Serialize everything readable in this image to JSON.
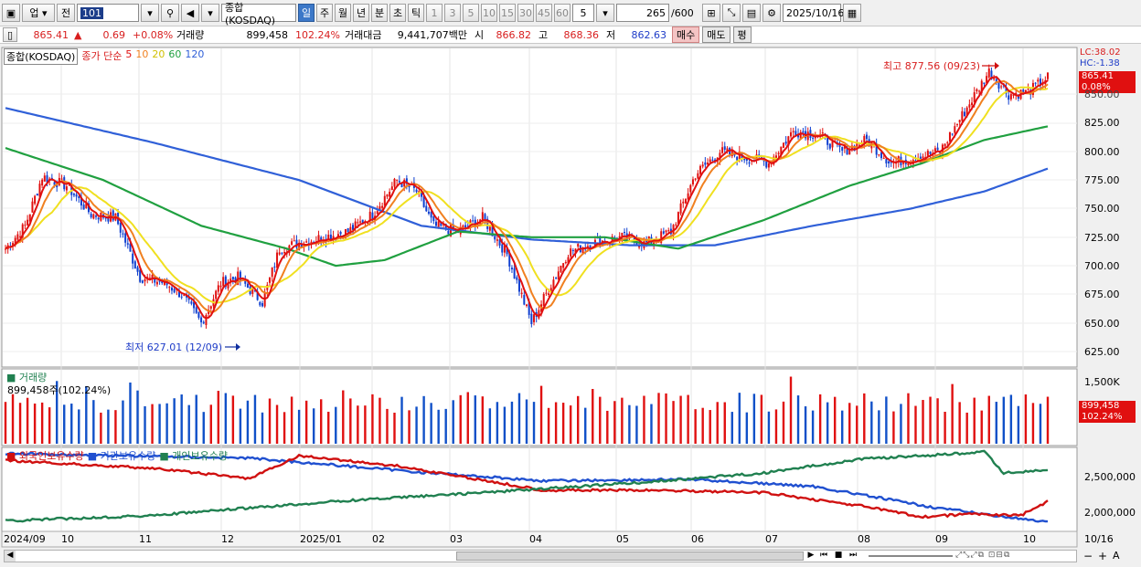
{
  "toolbar": {
    "market": "업",
    "prev_label": "전",
    "code": "101",
    "name": "종합(KOSDAQ)",
    "periods": [
      "일",
      "주",
      "월",
      "년",
      "분",
      "초",
      "틱"
    ],
    "active_period": "일",
    "intervals": [
      "1",
      "3",
      "5",
      "10",
      "15",
      "30",
      "45",
      "60"
    ],
    "interval_value": "5",
    "count": "265",
    "count_total": "/600",
    "date": "2025/10/16"
  },
  "info": {
    "price": "865.41",
    "change_arrow": "▲",
    "change": "0.69",
    "change_pct": "+0.08%",
    "volume_label": "거래량",
    "volume": "899,458",
    "volume_pct": "102.24%",
    "amount_label": "거래대금",
    "amount": "9,441,707백만",
    "open_label": "시",
    "open": "866.82",
    "high_label": "고",
    "high": "868.36",
    "low_label": "저",
    "low": "862.63",
    "buy": "매수",
    "sell": "매도",
    "avg": "평"
  },
  "price_panel": {
    "legend_name": "종합(KOSDAQ)",
    "ma_title": "종가 단순",
    "ma_periods": [
      {
        "label": "5",
        "color": "#e01010"
      },
      {
        "label": "10",
        "color": "#f08020"
      },
      {
        "label": "20",
        "color": "#f0e020"
      },
      {
        "label": "60",
        "color": "#20a040"
      },
      {
        "label": "120",
        "color": "#3060d8"
      }
    ],
    "lc": "LC:38.02",
    "hc": "HC:-1.38",
    "last_price_tag": "865.41",
    "last_pct_tag": "0.08%",
    "high_note": "최고 877.56 (09/23)",
    "low_note": "최저 627.01 (12/09)",
    "y_ticks": [
      "850.00",
      "825.00",
      "800.00",
      "775.00",
      "750.00",
      "725.00",
      "700.00",
      "675.00",
      "650.00",
      "625.00"
    ]
  },
  "volume_panel": {
    "title": "거래량",
    "value": "899,458주(102.24%)",
    "y_tick": "1,500K",
    "tag_value": "899,458",
    "tag_pct": "102.24%"
  },
  "holding_panel": {
    "legend": [
      {
        "label": "외국인보유수량",
        "color": "#d01010"
      },
      {
        "label": "기관보유수량",
        "color": "#2050d0"
      },
      {
        "label": "개인보유수량",
        "color": "#208050"
      }
    ],
    "y_ticks": [
      "2,500,000",
      "2,000,000"
    ]
  },
  "x_axis": {
    "labels": [
      "2024/09",
      "10",
      "11",
      "12",
      "2025/01",
      "02",
      "03",
      "04",
      "05",
      "06",
      "07",
      "08",
      "09",
      "10"
    ],
    "right_label": "10/16"
  },
  "chart_data": {
    "type": "candlestick",
    "x_range": [
      "2024/09",
      "2025/10/16"
    ],
    "y_range": [
      620,
      880
    ],
    "price_anchors": [
      [
        0,
        715
      ],
      [
        8,
        735
      ],
      [
        15,
        778
      ],
      [
        25,
        770
      ],
      [
        35,
        745
      ],
      [
        45,
        742
      ],
      [
        55,
        690
      ],
      [
        65,
        685
      ],
      [
        72,
        675
      ],
      [
        80,
        650
      ],
      [
        88,
        685
      ],
      [
        95,
        690
      ],
      [
        105,
        668
      ],
      [
        112,
        715
      ],
      [
        120,
        720
      ],
      [
        130,
        725
      ],
      [
        140,
        730
      ],
      [
        150,
        745
      ],
      [
        160,
        775
      ],
      [
        168,
        765
      ],
      [
        175,
        735
      ],
      [
        185,
        730
      ],
      [
        195,
        742
      ],
      [
        205,
        710
      ],
      [
        215,
        650
      ],
      [
        222,
        680
      ],
      [
        230,
        712
      ],
      [
        240,
        720
      ],
      [
        252,
        725
      ],
      [
        262,
        720
      ],
      [
        272,
        730
      ],
      [
        282,
        780
      ],
      [
        292,
        800
      ],
      [
        302,
        795
      ],
      [
        312,
        790
      ],
      [
        322,
        818
      ],
      [
        332,
        815
      ],
      [
        342,
        800
      ],
      [
        352,
        810
      ],
      [
        362,
        790
      ],
      [
        372,
        795
      ],
      [
        382,
        800
      ],
      [
        392,
        835
      ],
      [
        402,
        870
      ],
      [
        410,
        850
      ],
      [
        418,
        852
      ],
      [
        426,
        865
      ]
    ],
    "ma60_anchors": [
      [
        0,
        803
      ],
      [
        40,
        775
      ],
      [
        80,
        735
      ],
      [
        115,
        715
      ],
      [
        135,
        700
      ],
      [
        155,
        705
      ],
      [
        185,
        730
      ],
      [
        215,
        725
      ],
      [
        245,
        725
      ],
      [
        275,
        715
      ],
      [
        310,
        740
      ],
      [
        345,
        770
      ],
      [
        375,
        790
      ],
      [
        400,
        810
      ],
      [
        426,
        822
      ]
    ],
    "ma120_anchors": [
      [
        0,
        838
      ],
      [
        60,
        808
      ],
      [
        120,
        775
      ],
      [
        170,
        735
      ],
      [
        215,
        723
      ],
      [
        255,
        718
      ],
      [
        290,
        718
      ],
      [
        330,
        735
      ],
      [
        370,
        750
      ],
      [
        400,
        765
      ],
      [
        426,
        785
      ]
    ],
    "foreign_anchors": [
      [
        0,
        0.12
      ],
      [
        60,
        0.22
      ],
      [
        100,
        0.35
      ],
      [
        120,
        0.06
      ],
      [
        160,
        0.19
      ],
      [
        220,
        0.5
      ],
      [
        270,
        0.5
      ],
      [
        310,
        0.53
      ],
      [
        350,
        0.7
      ],
      [
        375,
        0.84
      ],
      [
        395,
        0.8
      ],
      [
        415,
        0.82
      ],
      [
        426,
        0.64
      ]
    ],
    "institution_anchors": [
      [
        0,
        0.03
      ],
      [
        100,
        0.09
      ],
      [
        170,
        0.27
      ],
      [
        220,
        0.38
      ],
      [
        280,
        0.36
      ],
      [
        330,
        0.45
      ],
      [
        380,
        0.72
      ],
      [
        426,
        0.91
      ]
    ],
    "individual_anchors": [
      [
        0,
        0.89
      ],
      [
        60,
        0.82
      ],
      [
        140,
        0.63
      ],
      [
        200,
        0.52
      ],
      [
        260,
        0.4
      ],
      [
        310,
        0.28
      ],
      [
        350,
        0.1
      ],
      [
        380,
        0.05
      ],
      [
        400,
        0.01
      ],
      [
        408,
        0.28
      ],
      [
        426,
        0.24
      ]
    ]
  }
}
